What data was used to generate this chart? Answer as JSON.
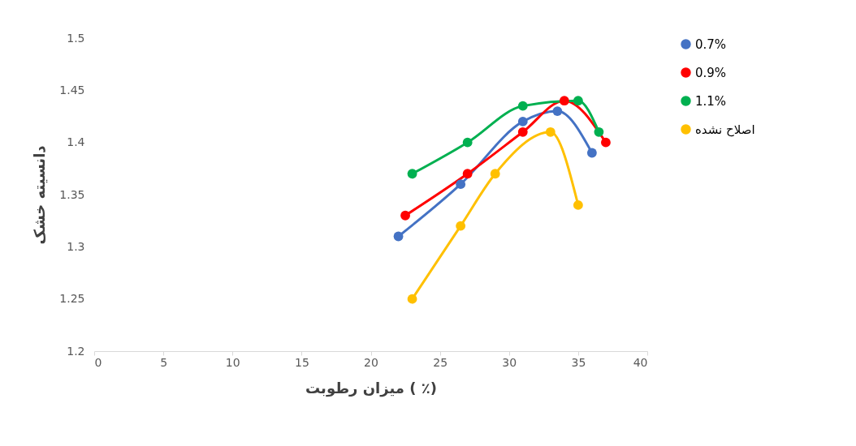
{
  "chart_data": {
    "type": "line",
    "xlabel": "میزان رطوبت ( ٪)",
    "ylabel": "دانسیته خشک",
    "xlim": [
      0,
      40
    ],
    "xticks": [
      0,
      5,
      10,
      15,
      20,
      25,
      30,
      35,
      40
    ],
    "ylim": [
      1.2,
      1.5
    ],
    "yticks": [
      1.2,
      1.25,
      1.3,
      1.35,
      1.4,
      1.45,
      1.5
    ],
    "marker": "circle",
    "legend": "right",
    "grid": false,
    "series": [
      {
        "name": "0.7%",
        "color": "#4472c4",
        "x": [
          22,
          26.5,
          31,
          33.5,
          36
        ],
        "values": [
          1.31,
          1.36,
          1.42,
          1.43,
          1.39
        ]
      },
      {
        "name": "0.9%",
        "color": "#ff0000",
        "x": [
          22.5,
          27,
          31,
          34,
          37
        ],
        "values": [
          1.33,
          1.37,
          1.41,
          1.44,
          1.4
        ]
      },
      {
        "name": "1.1%",
        "color": "#00b050",
        "x": [
          23,
          27,
          31,
          35,
          36.5
        ],
        "values": [
          1.37,
          1.4,
          1.435,
          1.44,
          1.41
        ]
      },
      {
        "name": "اصلاح نشده",
        "color": "#ffc000",
        "x": [
          23,
          26.5,
          29,
          33,
          35
        ],
        "values": [
          1.25,
          1.32,
          1.37,
          1.41,
          1.34
        ]
      }
    ]
  }
}
